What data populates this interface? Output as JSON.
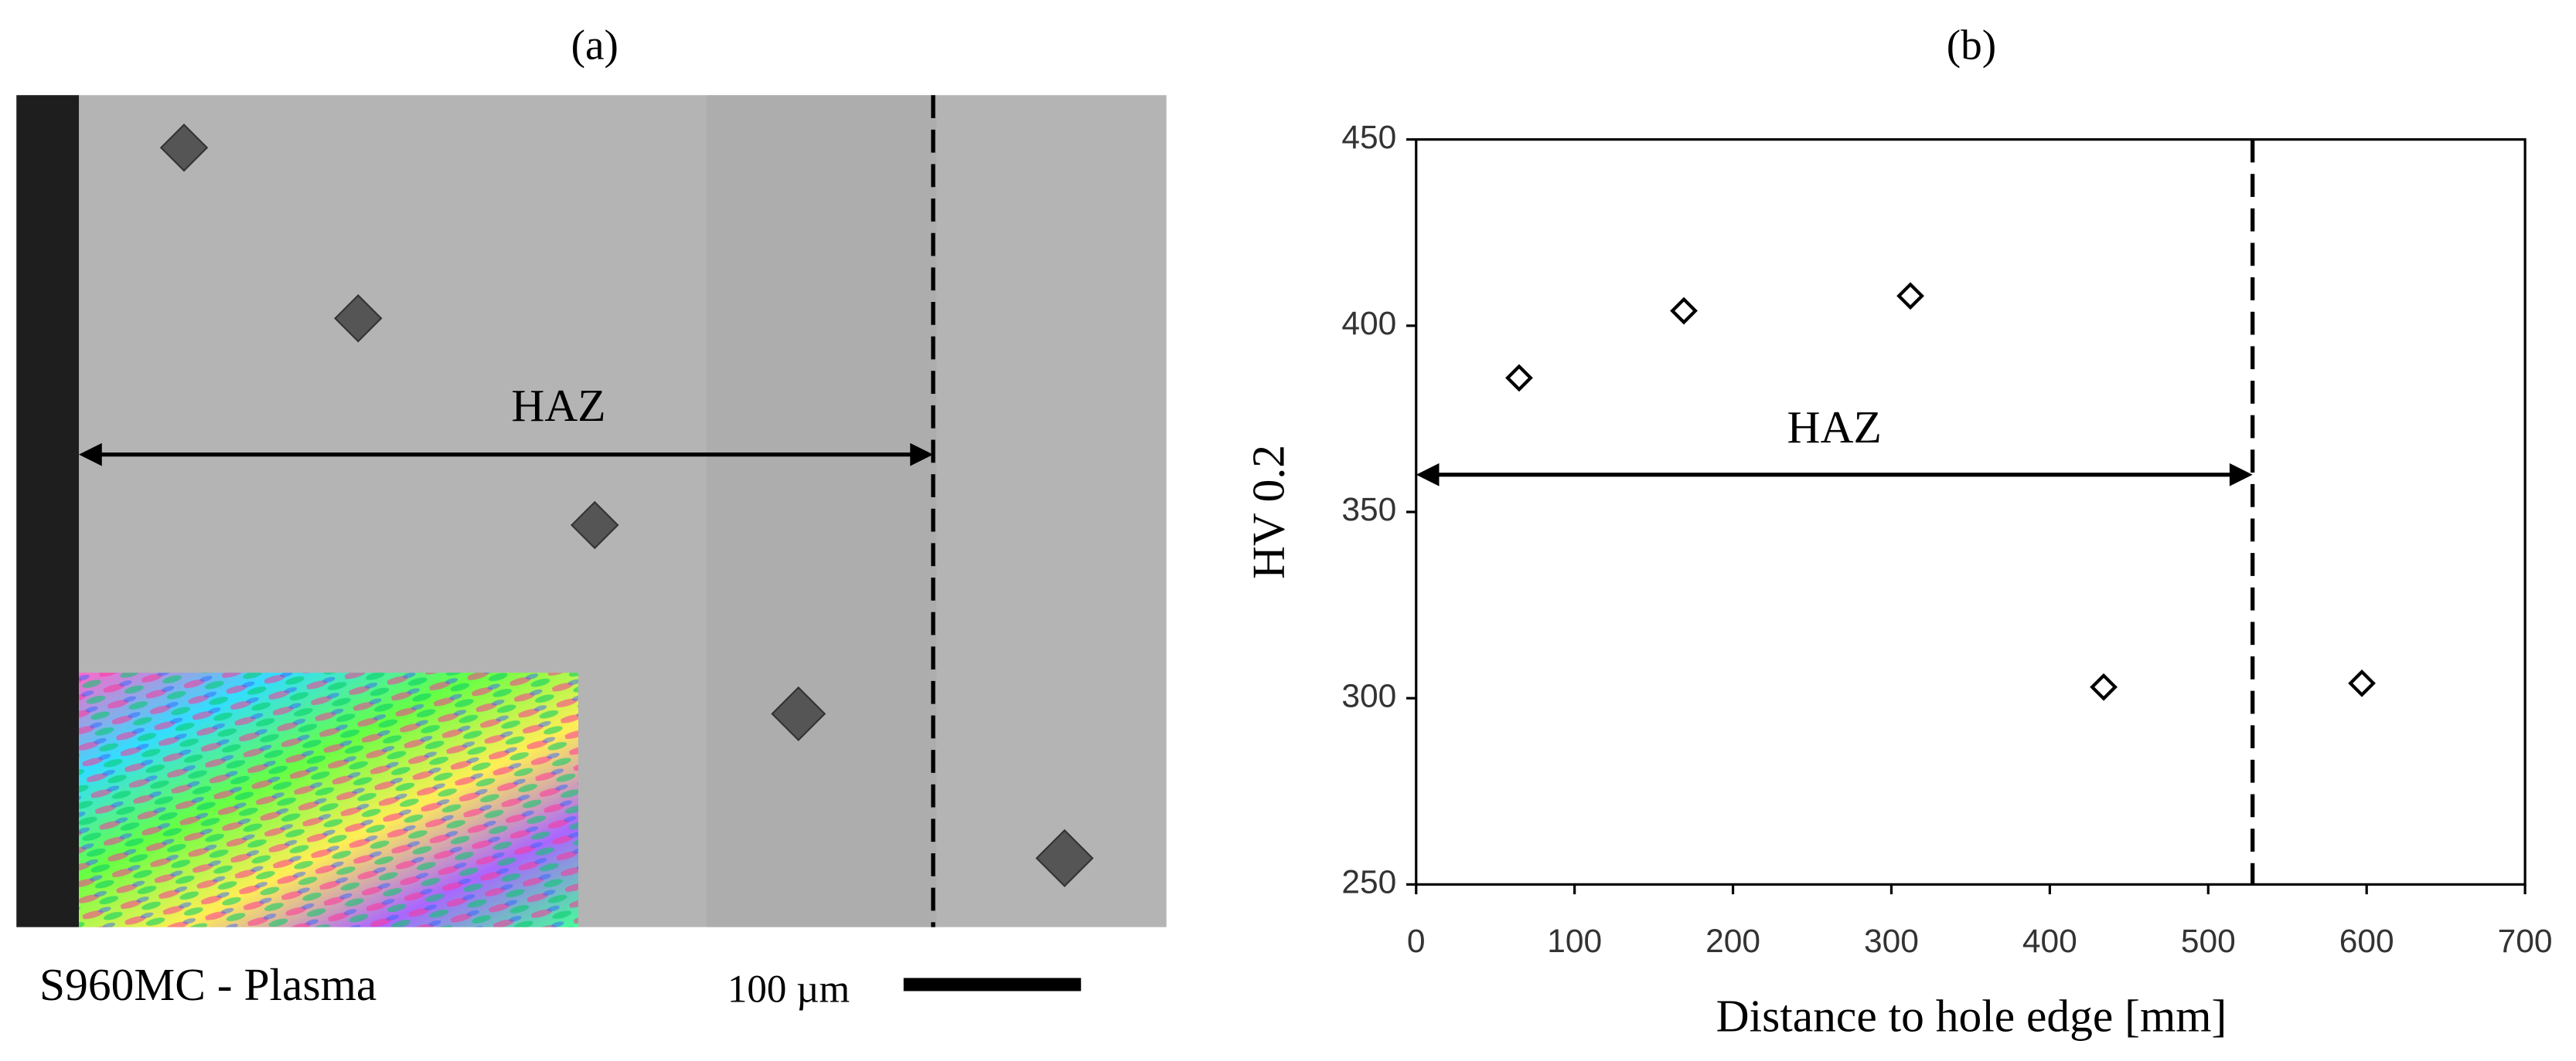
{
  "panel_a": {
    "label": "(a)",
    "annotation": "HAZ",
    "caption": "S960MC - Plasma",
    "scale_bar": "100 µm"
  },
  "chart_data": {
    "type": "scatter",
    "panel_label": "(b)",
    "xlabel": "Distance to hole edge [mm]",
    "ylabel": "HV 0.2",
    "x": [
      65,
      169,
      312,
      434,
      597
    ],
    "values": [
      386,
      404,
      408,
      303,
      304
    ],
    "xlim": [
      0,
      700
    ],
    "xticks": [
      0,
      100,
      200,
      300,
      400,
      500,
      600,
      700
    ],
    "ylim": [
      250,
      450
    ],
    "yticks": [
      250,
      300,
      350,
      400,
      450
    ],
    "marker": "diamond",
    "color": "#000000",
    "annotation": "HAZ",
    "haz_boundary": 528,
    "haz_arrow_y": 360
  }
}
